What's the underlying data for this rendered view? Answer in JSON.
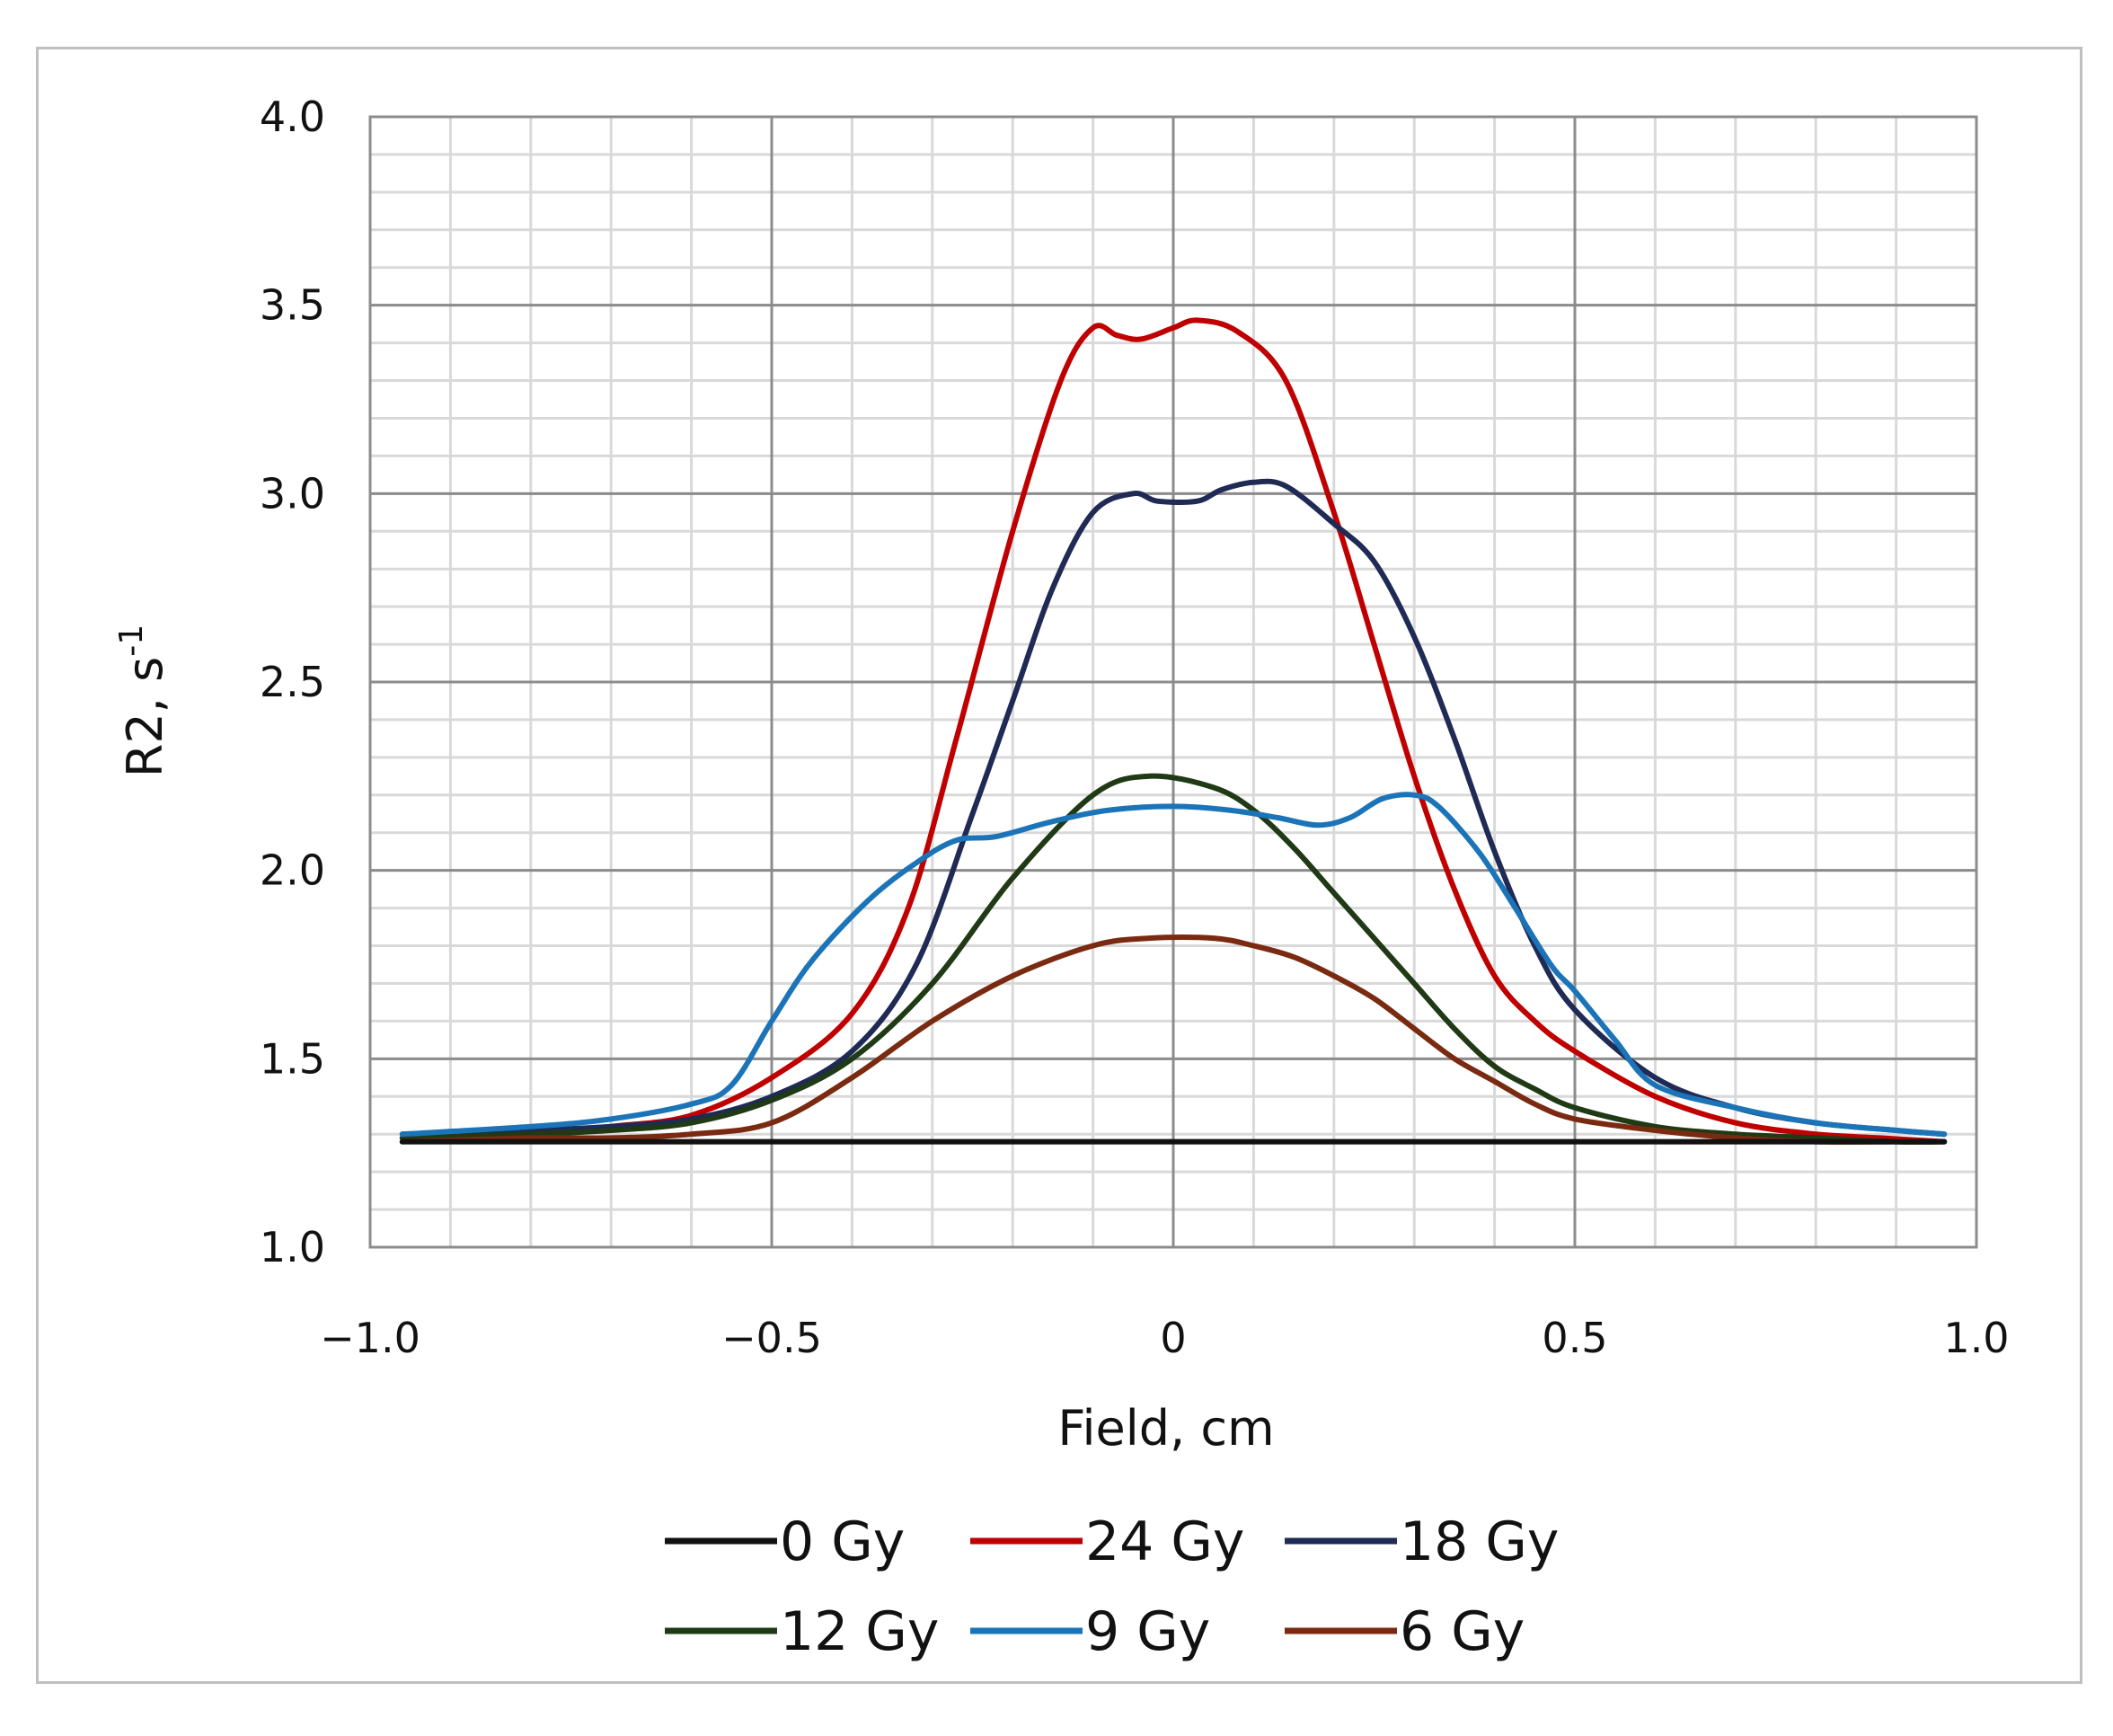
{
  "chart_data": {
    "type": "line",
    "title": "",
    "xlabel": "Field, cm",
    "ylabel": {
      "main": "R2, s",
      "superscript": "-1"
    },
    "xlim": [
      -1.0,
      1.0
    ],
    "ylim": [
      1.0,
      4.0
    ],
    "x_major_ticks": [
      -1.0,
      -0.5,
      0,
      0.5,
      1.0
    ],
    "x_tick_labels": [
      "−1.0",
      "−0.5",
      "0",
      "0.5",
      "1.0"
    ],
    "y_major_ticks": [
      1.0,
      1.5,
      2.0,
      2.5,
      3.0,
      3.5,
      4.0
    ],
    "y_tick_labels": [
      "1.0",
      "1.5",
      "2.0",
      "2.5",
      "3.0",
      "3.5",
      "4.0"
    ],
    "x_minor_step": 0.1,
    "y_minor_step": 0.1,
    "grid": true,
    "legend_position": "bottom",
    "series": [
      {
        "name": "0 Gy",
        "color": "#111111",
        "x": [
          -0.96,
          0.96
        ],
        "y": [
          1.28,
          1.28
        ]
      },
      {
        "name": "24 Gy",
        "color": "#c00000",
        "x": [
          -0.96,
          -0.8,
          -0.7,
          -0.6,
          -0.5,
          -0.4,
          -0.33,
          -0.27,
          -0.2,
          -0.14,
          -0.1,
          -0.07,
          -0.04,
          0.0,
          0.03,
          0.08,
          0.14,
          0.2,
          0.25,
          0.3,
          0.35,
          0.4,
          0.45,
          0.5,
          0.6,
          0.7,
          0.8,
          0.88,
          0.96
        ],
        "y": [
          1.29,
          1.3,
          1.32,
          1.35,
          1.45,
          1.62,
          1.9,
          2.35,
          2.9,
          3.3,
          3.44,
          3.42,
          3.41,
          3.44,
          3.46,
          3.43,
          3.3,
          2.95,
          2.6,
          2.25,
          1.95,
          1.72,
          1.6,
          1.52,
          1.4,
          1.33,
          1.3,
          1.29,
          1.28
        ]
      },
      {
        "name": "18 Gy",
        "color": "#1f2a55",
        "x": [
          -0.96,
          -0.8,
          -0.7,
          -0.6,
          -0.5,
          -0.4,
          -0.32,
          -0.25,
          -0.2,
          -0.15,
          -0.1,
          -0.05,
          -0.02,
          0.03,
          0.06,
          0.1,
          0.14,
          0.2,
          0.25,
          0.3,
          0.35,
          0.4,
          0.45,
          0.5,
          0.6,
          0.7,
          0.8,
          0.9,
          0.96
        ],
        "y": [
          1.3,
          1.31,
          1.32,
          1.34,
          1.4,
          1.52,
          1.75,
          2.15,
          2.45,
          2.75,
          2.95,
          3.0,
          2.98,
          2.98,
          3.01,
          3.03,
          3.02,
          2.92,
          2.82,
          2.62,
          2.35,
          2.05,
          1.8,
          1.63,
          1.45,
          1.37,
          1.33,
          1.31,
          1.3
        ]
      },
      {
        "name": "12 Gy",
        "color": "#1f3a14",
        "x": [
          -0.96,
          -0.8,
          -0.7,
          -0.6,
          -0.5,
          -0.4,
          -0.3,
          -0.2,
          -0.1,
          -0.03,
          0.05,
          0.1,
          0.15,
          0.2,
          0.25,
          0.3,
          0.35,
          0.4,
          0.45,
          0.5,
          0.6,
          0.7,
          0.8,
          0.9,
          0.96
        ],
        "y": [
          1.29,
          1.3,
          1.31,
          1.33,
          1.39,
          1.5,
          1.7,
          1.98,
          2.2,
          2.25,
          2.22,
          2.16,
          2.06,
          1.94,
          1.82,
          1.7,
          1.58,
          1.48,
          1.42,
          1.37,
          1.32,
          1.3,
          1.29,
          1.28,
          1.28
        ]
      },
      {
        "name": "9 Gy",
        "color": "#1b74b8",
        "x": [
          -0.96,
          -0.8,
          -0.7,
          -0.6,
          -0.55,
          -0.5,
          -0.45,
          -0.38,
          -0.32,
          -0.27,
          -0.22,
          -0.15,
          -0.08,
          0.0,
          0.07,
          0.13,
          0.18,
          0.22,
          0.26,
          0.3,
          0.33,
          0.38,
          0.42,
          0.47,
          0.5,
          0.55,
          0.6,
          0.7,
          0.8,
          0.9,
          0.96
        ],
        "y": [
          1.3,
          1.32,
          1.34,
          1.38,
          1.43,
          1.6,
          1.76,
          1.92,
          2.02,
          2.08,
          2.09,
          2.13,
          2.16,
          2.17,
          2.16,
          2.14,
          2.12,
          2.14,
          2.19,
          2.2,
          2.17,
          2.05,
          1.92,
          1.75,
          1.68,
          1.55,
          1.43,
          1.37,
          1.33,
          1.31,
          1.3
        ]
      },
      {
        "name": "6 Gy",
        "color": "#7a2a10",
        "x": [
          -0.96,
          -0.8,
          -0.7,
          -0.6,
          -0.5,
          -0.4,
          -0.3,
          -0.2,
          -0.1,
          -0.03,
          0.05,
          0.1,
          0.15,
          0.2,
          0.25,
          0.3,
          0.35,
          0.4,
          0.45,
          0.5,
          0.6,
          0.7,
          0.8,
          0.9,
          0.96
        ],
        "y": [
          1.28,
          1.29,
          1.29,
          1.3,
          1.33,
          1.45,
          1.6,
          1.72,
          1.8,
          1.82,
          1.82,
          1.8,
          1.77,
          1.72,
          1.66,
          1.58,
          1.5,
          1.44,
          1.38,
          1.34,
          1.31,
          1.29,
          1.28,
          1.28,
          1.28
        ]
      }
    ]
  }
}
